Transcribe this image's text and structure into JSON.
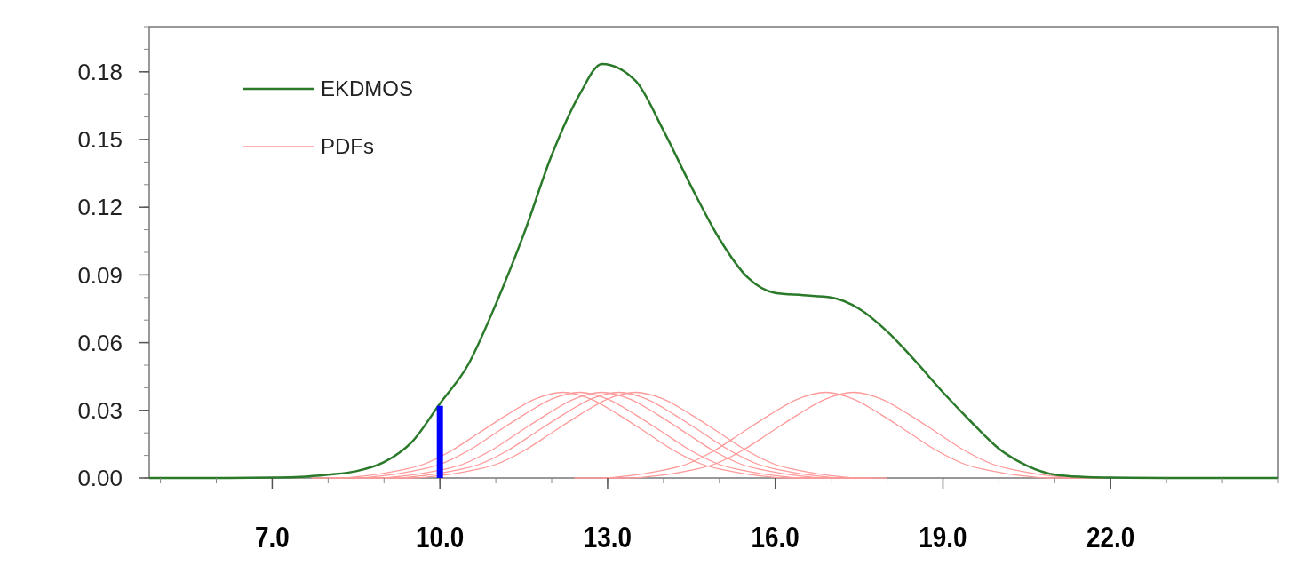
{
  "chart_data": {
    "type": "line",
    "xlim": [
      4.8,
      25.0
    ],
    "ylim": [
      0,
      0.2
    ],
    "xticks": [
      {
        "value": 7,
        "label": "7.0"
      },
      {
        "value": 10,
        "label": "10.0"
      },
      {
        "value": 13,
        "label": "13.0"
      },
      {
        "value": 16,
        "label": "16.0"
      },
      {
        "value": 19,
        "label": "19.0"
      },
      {
        "value": 22,
        "label": "22.0"
      }
    ],
    "yticks": [
      {
        "value": 0,
        "label": "0.00"
      },
      {
        "value": 0.03,
        "label": "0.03"
      },
      {
        "value": 0.06,
        "label": "0.06"
      },
      {
        "value": 0.09,
        "label": "0.09"
      },
      {
        "value": 0.12,
        "label": "0.12"
      },
      {
        "value": 0.15,
        "label": "0.15"
      },
      {
        "value": 0.18,
        "label": "0.18"
      }
    ],
    "legend": "top left",
    "grid": false,
    "series": [
      {
        "name": "PDFs",
        "color": "#ff9a9a",
        "x": [
          7.7,
          8.2,
          8.7,
          9.2,
          9.7,
          10.2,
          10.7,
          11.2,
          11.7,
          12.2,
          12.7,
          13.2,
          13.7,
          14.2,
          14.7,
          15.2,
          15.7,
          16.2,
          16.7
        ],
        "values": [
          0.0,
          0.0,
          0.001,
          0.003,
          0.006,
          0.012,
          0.02,
          0.028,
          0.035,
          0.038,
          0.035,
          0.028,
          0.02,
          0.012,
          0.006,
          0.003,
          0.001,
          0.0,
          0.0
        ]
      },
      {
        "color": "#ff9a9a",
        "x": [
          8.0,
          8.5,
          9.0,
          9.5,
          10.0,
          10.5,
          11.0,
          11.5,
          12.0,
          12.5,
          13.0,
          13.5,
          14.0,
          14.5,
          15.0,
          15.5,
          16.0,
          16.5,
          17.0
        ],
        "values": [
          0.0,
          0.0,
          0.001,
          0.003,
          0.006,
          0.012,
          0.02,
          0.028,
          0.035,
          0.038,
          0.035,
          0.028,
          0.02,
          0.012,
          0.006,
          0.003,
          0.001,
          0.0,
          0.0
        ]
      },
      {
        "color": "#ff9a9a",
        "x": [
          8.4,
          8.9,
          9.4,
          9.9,
          10.4,
          10.9,
          11.4,
          11.9,
          12.4,
          12.9,
          13.4,
          13.9,
          14.4,
          14.9,
          15.4,
          15.9,
          16.4,
          16.9,
          17.4
        ],
        "values": [
          0.0,
          0.0,
          0.001,
          0.003,
          0.006,
          0.012,
          0.02,
          0.028,
          0.035,
          0.038,
          0.035,
          0.028,
          0.02,
          0.012,
          0.006,
          0.003,
          0.001,
          0.0,
          0.0
        ]
      },
      {
        "color": "#ff9a9a",
        "x": [
          8.7,
          9.2,
          9.7,
          10.2,
          10.7,
          11.2,
          11.7,
          12.2,
          12.7,
          13.2,
          13.7,
          14.2,
          14.7,
          15.2,
          15.7,
          16.2,
          16.7,
          17.2,
          17.7
        ],
        "values": [
          0.0,
          0.0,
          0.001,
          0.003,
          0.006,
          0.012,
          0.02,
          0.028,
          0.035,
          0.038,
          0.035,
          0.028,
          0.02,
          0.012,
          0.006,
          0.003,
          0.001,
          0.0,
          0.0
        ]
      },
      {
        "color": "#ff9a9a",
        "x": [
          9.0,
          9.5,
          10.0,
          10.5,
          11.0,
          11.5,
          12.0,
          12.5,
          13.0,
          13.5,
          14.0,
          14.5,
          15.0,
          15.5,
          16.0,
          16.5,
          17.0,
          17.5,
          18.0
        ],
        "values": [
          0.0,
          0.0,
          0.001,
          0.003,
          0.006,
          0.012,
          0.02,
          0.028,
          0.035,
          0.038,
          0.035,
          0.028,
          0.02,
          0.012,
          0.006,
          0.003,
          0.001,
          0.0,
          0.0
        ]
      },
      {
        "color": "#ff9a9a",
        "x": [
          12.4,
          12.9,
          13.4,
          13.9,
          14.4,
          14.9,
          15.4,
          15.9,
          16.4,
          16.9,
          17.4,
          17.9,
          18.4,
          18.9,
          19.4,
          19.9,
          20.4,
          20.9,
          21.4
        ],
        "values": [
          0.0,
          0.0,
          0.001,
          0.003,
          0.006,
          0.012,
          0.02,
          0.028,
          0.035,
          0.038,
          0.035,
          0.028,
          0.02,
          0.012,
          0.006,
          0.003,
          0.001,
          0.0,
          0.0
        ]
      },
      {
        "color": "#ff9a9a",
        "x": [
          12.9,
          13.4,
          13.9,
          14.4,
          14.9,
          15.4,
          15.9,
          16.4,
          16.9,
          17.4,
          17.9,
          18.4,
          18.9,
          19.4,
          19.9,
          20.4,
          20.9,
          21.4,
          21.9
        ],
        "values": [
          0.0,
          0.0,
          0.001,
          0.003,
          0.006,
          0.012,
          0.02,
          0.028,
          0.035,
          0.038,
          0.035,
          0.028,
          0.02,
          0.012,
          0.006,
          0.003,
          0.001,
          0.0,
          0.0
        ]
      },
      {
        "name": "EKDMOS",
        "color": "#2a7a2a",
        "x": [
          4.8,
          6.0,
          7.0,
          7.5,
          8.0,
          8.5,
          9.0,
          9.5,
          10.0,
          10.5,
          11.0,
          11.5,
          12.0,
          12.5,
          12.9,
          13.5,
          14.0,
          14.5,
          15.0,
          15.5,
          16.0,
          16.5,
          17.0,
          17.5,
          18.0,
          18.5,
          19.0,
          19.5,
          20.0,
          20.5,
          21.0,
          21.5,
          22.0,
          23.0,
          25.0
        ],
        "values": [
          0,
          0,
          0.0002,
          0.0005,
          0.0015,
          0.003,
          0.007,
          0.016,
          0.033,
          0.05,
          0.077,
          0.108,
          0.143,
          0.17,
          0.1835,
          0.176,
          0.154,
          0.129,
          0.106,
          0.089,
          0.082,
          0.081,
          0.08,
          0.075,
          0.065,
          0.052,
          0.038,
          0.025,
          0.013,
          0.0055,
          0.0015,
          0.0005,
          0.0002,
          0,
          0
        ]
      },
      {
        "type": "bar",
        "color": "#0000ff",
        "x": [
          10
        ],
        "values": [
          0.032
        ]
      }
    ]
  }
}
